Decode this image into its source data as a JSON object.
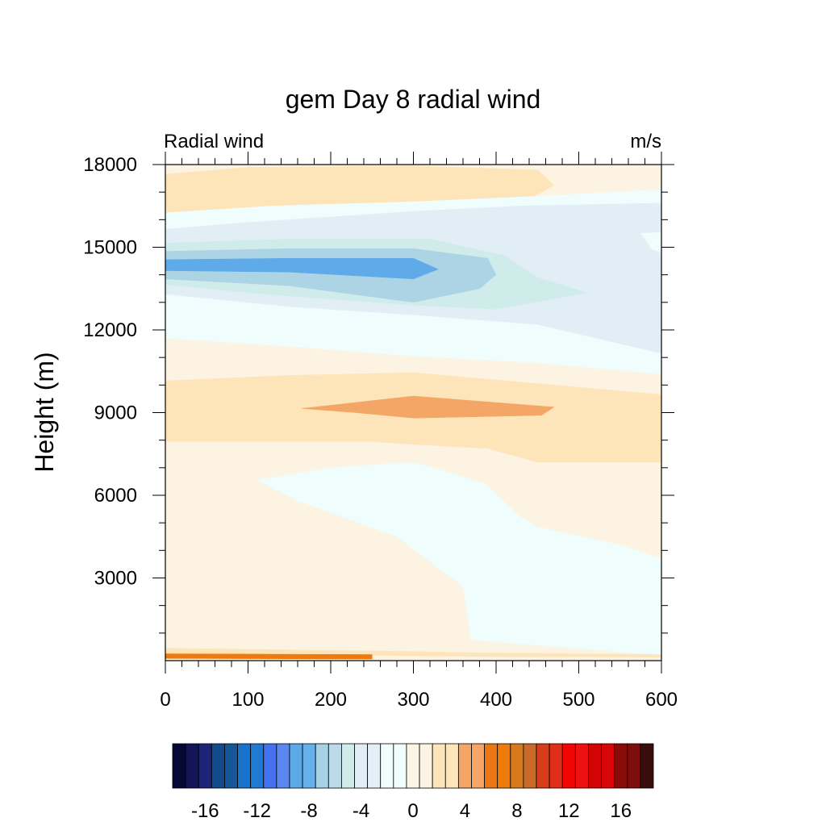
{
  "chart_data": {
    "type": "heatmap",
    "title": "gem Day 8 radial wind",
    "left_string": "Radial wind",
    "right_string": "m/s",
    "xlabel": "",
    "ylabel": "Height (m)",
    "xlim": [
      0,
      600
    ],
    "ylim": [
      0,
      18000
    ],
    "x_ticks": [
      0,
      100,
      200,
      300,
      400,
      500,
      600
    ],
    "x_tick_labels": [
      "0",
      "100",
      "200",
      "300",
      "400",
      "500",
      "600"
    ],
    "y_ticks": [
      3000,
      6000,
      9000,
      12000,
      15000,
      18000
    ],
    "y_tick_labels": [
      "3000",
      "6000",
      "9000",
      "12000",
      "15000",
      "18000"
    ],
    "x_minor_step": 20,
    "y_minor_step": 1000,
    "colorbar": {
      "levels": [
        -18,
        -17,
        -16,
        -15,
        -14,
        -13,
        -12,
        -11,
        -10,
        -9,
        -8,
        -7,
        -6,
        -5,
        -4,
        -3,
        -2,
        -1,
        0,
        1,
        2,
        3,
        4,
        5,
        6,
        7,
        8,
        9,
        10,
        11,
        12,
        13,
        14,
        15,
        16,
        17,
        18
      ],
      "colors": [
        "#050736",
        "#141459",
        "#1d2377",
        "#124b8c",
        "#155796",
        "#1873cc",
        "#1f7ad5",
        "#4471f2",
        "#5a88f0",
        "#5ca9e8",
        "#67b1ea",
        "#a7d1e4",
        "#bcd9e8",
        "#d0ecea",
        "#e0edf5",
        "#e4eef6",
        "#effdfc",
        "#f1fefe",
        "#fcf5e6",
        "#fcf3e3",
        "#fde5b9",
        "#fde6b8",
        "#f4a666",
        "#f5a564",
        "#ec7614",
        "#f07b0b",
        "#d9791e",
        "#c96a2b",
        "#d73c1b",
        "#e02f18",
        "#f20604",
        "#ef1111",
        "#d30404",
        "#d80608",
        "#8a0c06",
        "#7c0f0e",
        "#3a0d0d"
      ],
      "label_values": [
        -16,
        -12,
        -8,
        -4,
        0,
        4,
        8,
        12,
        16
      ],
      "labels": [
        "-16",
        "-12",
        "-8",
        "-4",
        "0",
        "4",
        "8",
        "12",
        "16"
      ]
    },
    "regions": [
      {
        "value": "0 to 1",
        "color": "#fcf3e3",
        "points": [
          [
            0,
            0
          ],
          [
            600,
            0
          ],
          [
            600,
            18000
          ],
          [
            0,
            18000
          ]
        ]
      },
      {
        "value": "1 to 3",
        "color": "#fde5b9",
        "points": [
          [
            0,
            16200
          ],
          [
            130,
            16350
          ],
          [
            300,
            16500
          ],
          [
            440,
            16750
          ],
          [
            470,
            17250
          ],
          [
            450,
            17800
          ],
          [
            300,
            17950
          ],
          [
            100,
            17900
          ],
          [
            0,
            17650
          ]
        ]
      },
      {
        "value": "-1 to 0",
        "color": "#effdfc",
        "points": [
          [
            0,
            11700
          ],
          [
            150,
            11400
          ],
          [
            300,
            11050
          ],
          [
            450,
            10800
          ],
          [
            600,
            10400
          ],
          [
            600,
            17100
          ],
          [
            450,
            16850
          ],
          [
            300,
            16650
          ],
          [
            130,
            16500
          ],
          [
            0,
            16250
          ]
        ]
      },
      {
        "value": "-3 to -1",
        "color": "#e2eef6",
        "points": [
          [
            0,
            13300
          ],
          [
            150,
            12850
          ],
          [
            300,
            12550
          ],
          [
            450,
            12200
          ],
          [
            600,
            11150
          ],
          [
            600,
            16600
          ],
          [
            520,
            16550
          ],
          [
            430,
            16500
          ],
          [
            300,
            16300
          ],
          [
            100,
            15900
          ],
          [
            0,
            15650
          ]
        ]
      },
      {
        "value": "-1 to 0",
        "color": "#effdfc",
        "points": [
          [
            575,
            15500
          ],
          [
            600,
            15550
          ],
          [
            600,
            14800
          ],
          [
            588,
            14950
          ]
        ]
      },
      {
        "value": "-5 to -3",
        "color": "#d0ecea",
        "points": [
          [
            0,
            13650
          ],
          [
            120,
            13300
          ],
          [
            300,
            12900
          ],
          [
            400,
            12750
          ],
          [
            510,
            13350
          ],
          [
            450,
            13900
          ],
          [
            410,
            14700
          ],
          [
            320,
            15300
          ],
          [
            150,
            15300
          ],
          [
            0,
            15150
          ]
        ]
      },
      {
        "value": "-7 to -5",
        "color": "#acd4e5",
        "points": [
          [
            0,
            13850
          ],
          [
            150,
            13600
          ],
          [
            300,
            13000
          ],
          [
            380,
            13500
          ],
          [
            400,
            14000
          ],
          [
            390,
            14600
          ],
          [
            300,
            14950
          ],
          [
            150,
            14950
          ],
          [
            0,
            14850
          ]
        ]
      },
      {
        "value": "-9 to -7",
        "color": "#5faae9",
        "points": [
          [
            0,
            14150
          ],
          [
            150,
            14100
          ],
          [
            300,
            13850
          ],
          [
            330,
            14200
          ],
          [
            300,
            14600
          ],
          [
            150,
            14600
          ],
          [
            0,
            14550
          ]
        ]
      },
      {
        "value": "1 to 3",
        "color": "#fde5b9",
        "points": [
          [
            0,
            7950
          ],
          [
            250,
            7950
          ],
          [
            300,
            7850
          ],
          [
            390,
            7700
          ],
          [
            450,
            7200
          ],
          [
            600,
            7200
          ],
          [
            600,
            9650
          ],
          [
            450,
            10050
          ],
          [
            300,
            10450
          ],
          [
            150,
            10350
          ],
          [
            0,
            10150
          ]
        ]
      },
      {
        "value": "3 to 5",
        "color": "#f4a666",
        "points": [
          [
            165,
            9150
          ],
          [
            300,
            9600
          ],
          [
            470,
            9200
          ],
          [
            455,
            8900
          ],
          [
            300,
            8800
          ],
          [
            230,
            9000
          ]
        ]
      },
      {
        "value": "-1 to 0",
        "color": "#effdfc",
        "points": [
          [
            110,
            6550
          ],
          [
            160,
            5800
          ],
          [
            280,
            4500
          ],
          [
            360,
            2700
          ],
          [
            370,
            750
          ],
          [
            600,
            200
          ],
          [
            600,
            3700
          ],
          [
            550,
            4200
          ],
          [
            450,
            4850
          ],
          [
            430,
            5200
          ],
          [
            385,
            6450
          ],
          [
            300,
            7200
          ],
          [
            200,
            7000
          ]
        ]
      },
      {
        "value": "1 to 3",
        "color": "#fde5b9",
        "points": [
          [
            0,
            250
          ],
          [
            300,
            180
          ],
          [
            380,
            150
          ],
          [
            600,
            130
          ],
          [
            600,
            220
          ],
          [
            380,
            280
          ],
          [
            300,
            330
          ],
          [
            0,
            450
          ]
        ]
      },
      {
        "value": "5 to 7",
        "color": "#ee790f",
        "points": [
          [
            0,
            80
          ],
          [
            250,
            60
          ],
          [
            250,
            220
          ],
          [
            0,
            250
          ]
        ]
      }
    ]
  }
}
